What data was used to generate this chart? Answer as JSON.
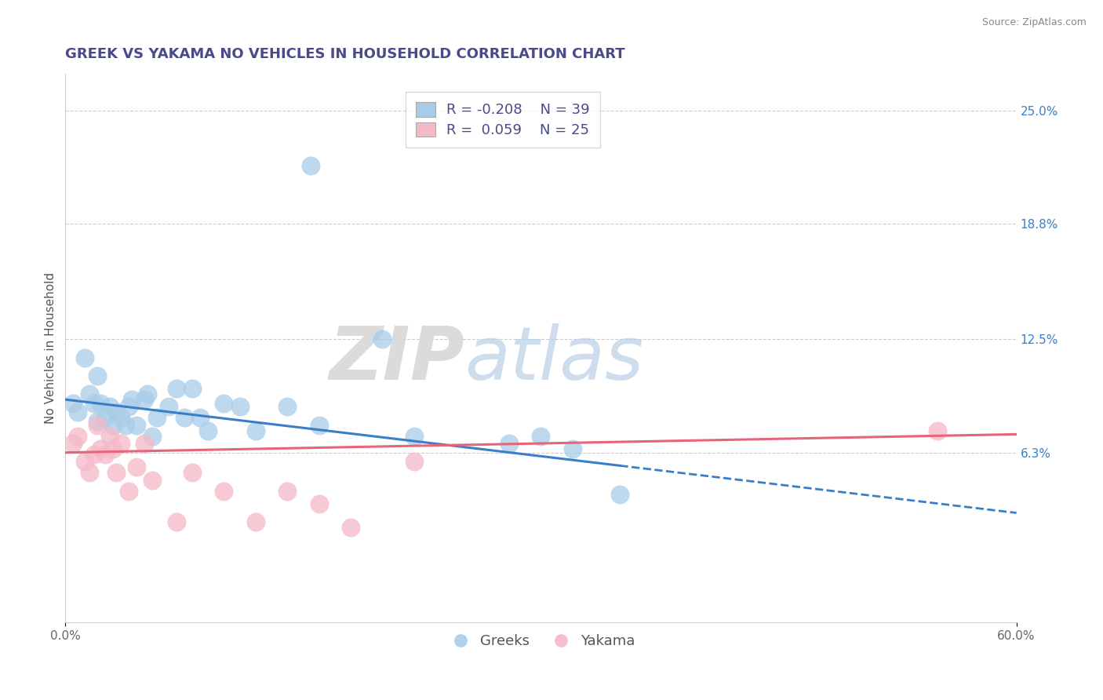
{
  "title": "GREEK VS YAKAMA NO VEHICLES IN HOUSEHOLD CORRELATION CHART",
  "source_text": "Source: ZipAtlas.com",
  "ylabel": "No Vehicles in Household",
  "xlim": [
    0.0,
    0.6
  ],
  "ylim": [
    -0.03,
    0.27
  ],
  "ytick_right_labels": [
    "6.3%",
    "12.5%",
    "18.8%",
    "25.0%"
  ],
  "ytick_right_values": [
    0.063,
    0.125,
    0.188,
    0.25
  ],
  "legend_r1": "R = -0.208",
  "legend_n1": "N = 39",
  "legend_r2": "R =  0.059",
  "legend_n2": "N = 25",
  "blue_color": "#a8cce8",
  "pink_color": "#f5b8c8",
  "blue_line_color": "#3a7ec8",
  "pink_line_color": "#e8647a",
  "watermark_zip": "ZIP",
  "watermark_atlas": "atlas",
  "background_color": "#ffffff",
  "greek_x": [
    0.005,
    0.008,
    0.012,
    0.015,
    0.018,
    0.02,
    0.02,
    0.022,
    0.025,
    0.028,
    0.03,
    0.032,
    0.035,
    0.038,
    0.04,
    0.042,
    0.045,
    0.05,
    0.052,
    0.055,
    0.058,
    0.065,
    0.07,
    0.075,
    0.08,
    0.085,
    0.09,
    0.1,
    0.11,
    0.12,
    0.14,
    0.155,
    0.16,
    0.2,
    0.22,
    0.28,
    0.3,
    0.32,
    0.35
  ],
  "greek_y": [
    0.09,
    0.085,
    0.115,
    0.095,
    0.09,
    0.105,
    0.08,
    0.09,
    0.082,
    0.088,
    0.078,
    0.085,
    0.082,
    0.078,
    0.088,
    0.092,
    0.078,
    0.092,
    0.095,
    0.072,
    0.082,
    0.088,
    0.098,
    0.082,
    0.098,
    0.082,
    0.075,
    0.09,
    0.088,
    0.075,
    0.088,
    0.22,
    0.078,
    0.125,
    0.072,
    0.068,
    0.072,
    0.065,
    0.04
  ],
  "yakama_x": [
    0.005,
    0.008,
    0.012,
    0.015,
    0.018,
    0.02,
    0.022,
    0.025,
    0.028,
    0.03,
    0.032,
    0.035,
    0.04,
    0.045,
    0.05,
    0.055,
    0.07,
    0.08,
    0.1,
    0.12,
    0.14,
    0.16,
    0.18,
    0.22,
    0.55
  ],
  "yakama_y": [
    0.068,
    0.072,
    0.058,
    0.052,
    0.062,
    0.078,
    0.065,
    0.062,
    0.072,
    0.065,
    0.052,
    0.068,
    0.042,
    0.055,
    0.068,
    0.048,
    0.025,
    0.052,
    0.042,
    0.025,
    0.042,
    0.035,
    0.022,
    0.058,
    0.075
  ],
  "title_color": "#4a4a8a",
  "title_fontsize": 13,
  "axis_label_fontsize": 11,
  "tick_fontsize": 11,
  "legend_fontsize": 13,
  "source_fontsize": 9
}
